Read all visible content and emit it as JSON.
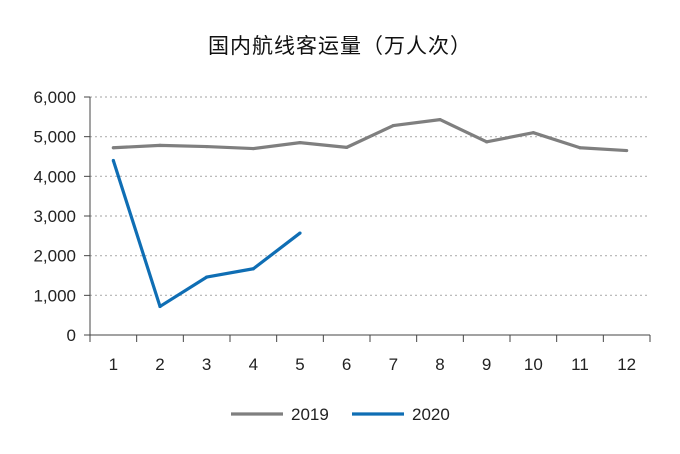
{
  "chart_data": {
    "type": "line",
    "title": "国内航线客运量（万人次）",
    "xlabel": "",
    "ylabel": "",
    "categories": [
      "1",
      "2",
      "3",
      "4",
      "5",
      "6",
      "7",
      "8",
      "9",
      "10",
      "11",
      "12"
    ],
    "ylim": [
      0,
      6000
    ],
    "yticks": [
      0,
      1000,
      2000,
      3000,
      4000,
      5000,
      6000
    ],
    "ytick_labels": [
      "0",
      "1,000",
      "2,000",
      "3,000",
      "4,000",
      "5,000",
      "6,000"
    ],
    "grid": "horizontal dotted",
    "legend_position": "bottom-center",
    "series": [
      {
        "name": "2019",
        "color": "#7f7f7f",
        "values": [
          4720,
          4780,
          4750,
          4700,
          4850,
          4730,
          5280,
          5430,
          4870,
          5100,
          4720,
          4650
        ]
      },
      {
        "name": "2020",
        "color": "#0f6eb4",
        "values": [
          4400,
          720,
          1460,
          1670,
          2570,
          null,
          null,
          null,
          null,
          null,
          null,
          null
        ]
      }
    ]
  }
}
